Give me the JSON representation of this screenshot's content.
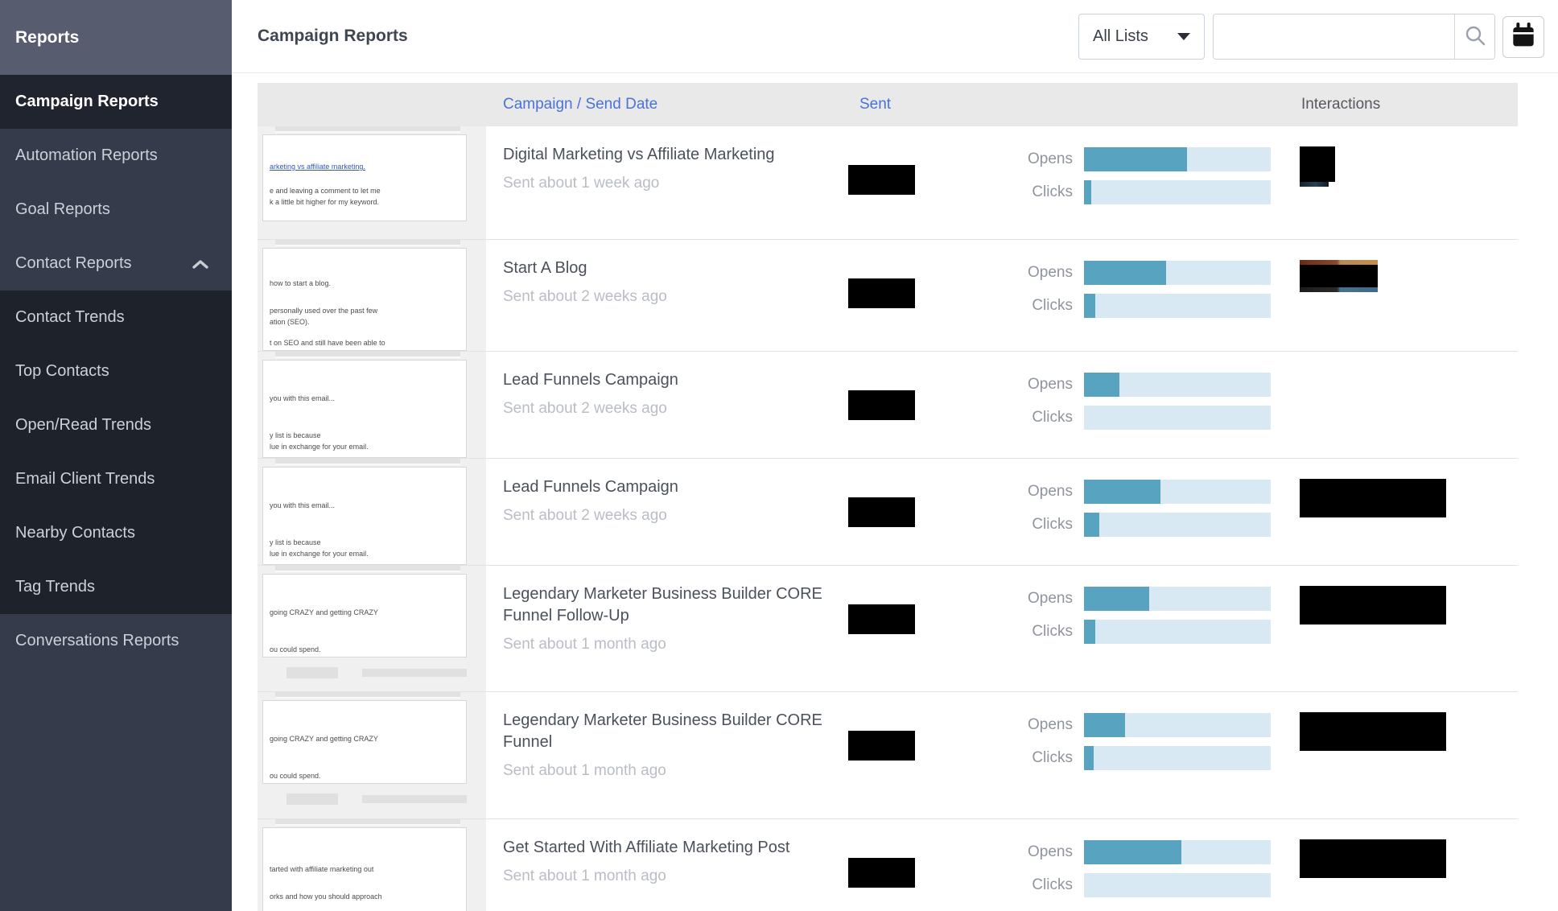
{
  "sidebar": {
    "header": "Reports",
    "items": [
      {
        "label": "Campaign Reports",
        "active": true
      },
      {
        "label": "Automation Reports"
      },
      {
        "label": "Goal Reports"
      },
      {
        "label": "Contact Reports",
        "expanded": true
      },
      {
        "label": "Contact Trends"
      },
      {
        "label": "Top Contacts"
      },
      {
        "label": "Open/Read Trends"
      },
      {
        "label": "Email Client Trends"
      },
      {
        "label": "Nearby Contacts"
      },
      {
        "label": "Tag Trends"
      },
      {
        "label": "Conversations Reports"
      }
    ]
  },
  "header": {
    "title": "Campaign Reports",
    "list_filter": {
      "value": "All Lists"
    },
    "search": {
      "value": "",
      "placeholder": ""
    },
    "icons": [
      "chevron-down",
      "search",
      "calendar"
    ]
  },
  "table": {
    "columns": [
      "Campaign / Send Date",
      "Sent",
      "Interactions"
    ],
    "labels": {
      "opens": "Opens",
      "clicks": "Clicks"
    }
  },
  "colors": {
    "bar_fill": "#57a3c0",
    "bar_bg": "#d9e9f3",
    "sort_link": "#4a72d9",
    "sidebar_bg": "#353b4a",
    "redaction": "#000000"
  },
  "rows": [
    {
      "title": "Digital Marketing vs Affiliate Marketing",
      "sent_ago": "Sent about 1 week ago",
      "opens_pct": 55,
      "clicks_pct": 4,
      "thumb_lines": [
        "arketing vs affiliate marketing.",
        "e and leaving a comment to let me",
        "k a little bit higher for my keyword."
      ]
    },
    {
      "title": "Start A Blog",
      "sent_ago": "Sent about 2 weeks ago",
      "opens_pct": 44,
      "clicks_pct": 6,
      "thumb_lines": [
        "how to start a blog.",
        "personally used over the past few",
        "ation (SEO).",
        "t on SEO and still have been able to"
      ]
    },
    {
      "title": "Lead Funnels Campaign",
      "sent_ago": "Sent about 2 weeks ago",
      "opens_pct": 19,
      "clicks_pct": 0,
      "thumb_lines": [
        "you with this email...",
        "y list is because",
        "lue in exchange for your email."
      ]
    },
    {
      "title": "Lead Funnels Campaign",
      "sent_ago": "Sent about 2 weeks ago",
      "opens_pct": 41,
      "clicks_pct": 8,
      "thumb_lines": [
        "you with this email...",
        "y list is because",
        "lue in exchange for your email."
      ]
    },
    {
      "title": "Legendary Marketer Business Builder CORE Funnel Follow-Up",
      "sent_ago": "Sent about 1 month ago",
      "opens_pct": 35,
      "clicks_pct": 6,
      "thumb_lines": [
        "going CRAZY and getting CRAZY",
        "ou could spend."
      ]
    },
    {
      "title": "Legendary Marketer Business Builder CORE Funnel",
      "sent_ago": "Sent about 1 month ago",
      "opens_pct": 22,
      "clicks_pct": 5,
      "thumb_lines": [
        "going CRAZY and getting CRAZY",
        "ou could spend."
      ]
    },
    {
      "title": "Get Started With Affiliate Marketing Post",
      "sent_ago": "Sent about 1 month ago",
      "opens_pct": 52,
      "clicks_pct": 0,
      "thumb_lines": [
        "tarted with affiliate marketing out",
        "orks and how you should approach"
      ]
    }
  ]
}
